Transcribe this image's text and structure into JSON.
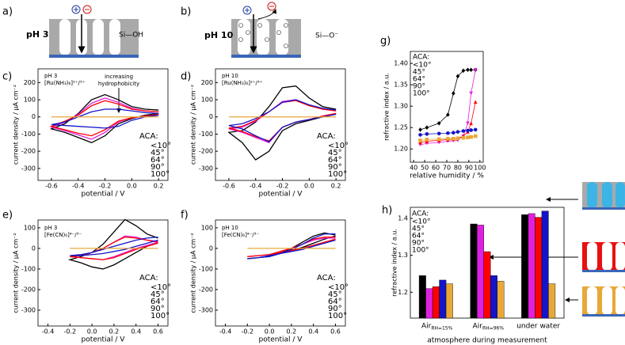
{
  "schematics": [
    {
      "panel": "a)",
      "label": "pH 3",
      "surface_group": "Si—OH"
    },
    {
      "panel": "b)",
      "label": "pH 10",
      "surface_group": "Si—O⁻"
    }
  ],
  "chart_data": [
    {
      "type": "line",
      "panel": "c)",
      "annotations": [
        "pH 3",
        "[Ru(NH₃)₆]²⁺/³⁺"
      ],
      "arrow_note": [
        "increasing",
        "hydrophobicity"
      ],
      "x_label": "potential / V",
      "y_label": "current density / µA cm⁻²",
      "legend_title": "ACA:",
      "xlim": [
        -0.7,
        0.27
      ],
      "ylim": [
        -370,
        280
      ],
      "xticks": [
        -0.6,
        -0.4,
        -0.2,
        {
          "value": 0,
          "label": "0.0"
        },
        0.2
      ],
      "yticks": [
        -300,
        -200,
        -100,
        0,
        100,
        200
      ],
      "x": [
        0.2,
        0.1,
        0,
        -0.1,
        -0.2,
        -0.3,
        -0.4,
        -0.5,
        -0.6,
        -0.5,
        -0.4,
        -0.3,
        -0.2,
        -0.1,
        0,
        0.1,
        0.2
      ],
      "series": [
        {
          "name": "<10°",
          "color": "#000000",
          "values": [
            20,
            10,
            -10,
            -40,
            -110,
            -150,
            -120,
            -90,
            -70,
            -40,
            20,
            100,
            130,
            100,
            60,
            45,
            40
          ]
        },
        {
          "name": "45°",
          "color": "#e020e0",
          "values": [
            15,
            5,
            -5,
            -30,
            -90,
            -130,
            -105,
            -80,
            -60,
            -30,
            15,
            80,
            110,
            85,
            50,
            35,
            30
          ]
        },
        {
          "name": "64°",
          "color": "#ff0000",
          "values": [
            15,
            5,
            -5,
            -25,
            -75,
            -110,
            -95,
            -75,
            -55,
            -25,
            10,
            65,
            95,
            75,
            45,
            35,
            30
          ]
        },
        {
          "name": "90°",
          "color": "#1414c8",
          "values": [
            10,
            0,
            -20,
            -55,
            -65,
            -60,
            -55,
            -50,
            -45,
            -30,
            0,
            30,
            45,
            45,
            35,
            25,
            20
          ]
        },
        {
          "name": "100°",
          "color": "#e8a838",
          "values": [
            0,
            0,
            0,
            0,
            0,
            0,
            0,
            0,
            0,
            0,
            0,
            0,
            0,
            0,
            0,
            0,
            0
          ]
        }
      ]
    },
    {
      "type": "line",
      "panel": "d)",
      "annotations": [
        "pH 10",
        "[Ru(NH₃)₆]²⁺/³⁺"
      ],
      "x_label": "potential / V",
      "y_label": "current density / µA cm⁻²",
      "legend_title": "ACA:",
      "xlim": [
        -0.7,
        0.27
      ],
      "ylim": [
        -370,
        280
      ],
      "xticks": [
        -0.6,
        -0.4,
        -0.2,
        {
          "value": 0,
          "label": "0.0"
        },
        0.2
      ],
      "yticks": [
        -300,
        -200,
        -100,
        0,
        100,
        200
      ],
      "x": [
        0.2,
        0.1,
        0,
        -0.1,
        -0.2,
        -0.3,
        -0.4,
        -0.5,
        -0.6,
        -0.5,
        -0.4,
        -0.3,
        -0.2,
        -0.1,
        0,
        0.1,
        0.2
      ],
      "series": [
        {
          "name": "<10°",
          "color": "#000000",
          "values": [
            20,
            0,
            -20,
            -40,
            -80,
            -200,
            -250,
            -150,
            -90,
            -80,
            -30,
            60,
            170,
            180,
            110,
            60,
            45
          ]
        },
        {
          "name": "45°",
          "color": "#e020e0",
          "values": [
            20,
            5,
            -15,
            -30,
            -60,
            -150,
            -120,
            -90,
            -70,
            -60,
            -25,
            30,
            90,
            100,
            70,
            45,
            35
          ]
        },
        {
          "name": "64°",
          "color": "#ff0000",
          "values": [
            20,
            5,
            -15,
            -30,
            -60,
            -140,
            -115,
            -85,
            -65,
            -55,
            -20,
            30,
            85,
            95,
            65,
            45,
            35
          ]
        },
        {
          "name": "90°",
          "color": "#1414c8",
          "values": [
            15,
            0,
            -15,
            -30,
            -60,
            -145,
            -110,
            -70,
            -50,
            -40,
            -10,
            30,
            85,
            100,
            70,
            50,
            40
          ]
        },
        {
          "name": "100°",
          "color": "#e8a838",
          "values": [
            0,
            0,
            0,
            0,
            0,
            0,
            0,
            0,
            0,
            0,
            0,
            0,
            0,
            0,
            0,
            0,
            0
          ]
        }
      ]
    },
    {
      "type": "line",
      "panel": "e)",
      "annotations": [
        "pH 3",
        "[Fe(CN)₆]⁴⁻/³⁻"
      ],
      "x_label": "potential / V",
      "y_label": "current density / µA cm⁻²",
      "legend_title": "ACA:",
      "xlim": [
        -0.49,
        0.69
      ],
      "ylim": [
        -377,
        138
      ],
      "xticks": [
        -0.4,
        -0.2,
        {
          "value": 0,
          "label": "0.0"
        },
        0.2,
        0.4,
        0.6
      ],
      "yticks": [
        -300,
        -200,
        -100,
        0,
        100
      ],
      "x": [
        0.6,
        0.5,
        0.4,
        0.3,
        0.2,
        0.1,
        0,
        -0.1,
        -0.2,
        -0.1,
        0,
        0.1,
        0.2,
        0.3,
        0.4,
        0.5,
        0.6
      ],
      "series": [
        {
          "name": "<10°",
          "color": "#000000",
          "values": [
            30,
            10,
            -20,
            -50,
            -80,
            -100,
            -90,
            -70,
            -55,
            -40,
            -20,
            20,
            80,
            140,
            110,
            70,
            50
          ]
        },
        {
          "name": "45°",
          "color": "#e020e0",
          "values": [
            30,
            15,
            0,
            -20,
            -40,
            -55,
            -50,
            -45,
            -40,
            -35,
            -20,
            0,
            30,
            60,
            55,
            40,
            35
          ]
        },
        {
          "name": "64°",
          "color": "#ff0000",
          "values": [
            25,
            10,
            -5,
            -25,
            -45,
            -55,
            -50,
            -45,
            -40,
            -35,
            -20,
            0,
            30,
            55,
            50,
            40,
            30
          ]
        },
        {
          "name": "90°",
          "color": "#1414c8",
          "values": [
            40,
            25,
            10,
            -5,
            -15,
            -25,
            -30,
            -35,
            -35,
            -30,
            -20,
            -5,
            10,
            25,
            40,
            50,
            55
          ]
        },
        {
          "name": "100°",
          "color": "#e8a838",
          "values": [
            0,
            0,
            0,
            0,
            0,
            0,
            0,
            0,
            0,
            0,
            0,
            0,
            0,
            0,
            0,
            0,
            0
          ]
        }
      ]
    },
    {
      "type": "line",
      "panel": "f)",
      "annotations": [
        "pH 10",
        "[Fe(CN)₆]⁴⁻/³⁻"
      ],
      "x_label": "potential / V",
      "y_label": "current density / µA cm⁻²",
      "legend_title": "ACA:",
      "xlim": [
        -0.49,
        0.69
      ],
      "ylim": [
        -377,
        138
      ],
      "xticks": [
        -0.4,
        -0.2,
        {
          "value": 0,
          "label": "0.0"
        },
        0.2,
        0.4,
        0.6
      ],
      "yticks": [
        -300,
        -200,
        -100,
        0,
        100
      ],
      "x": [
        0.6,
        0.5,
        0.4,
        0.3,
        0.2,
        0.1,
        0,
        -0.1,
        -0.2,
        -0.1,
        0,
        0.1,
        0.2,
        0.3,
        0.4,
        0.5,
        0.6
      ],
      "series": [
        {
          "name": "<10°",
          "color": "#000000",
          "values": [
            60,
            45,
            25,
            5,
            -10,
            -25,
            -35,
            -45,
            -50,
            -45,
            -35,
            -20,
            0,
            30,
            60,
            75,
            65
          ]
        },
        {
          "name": "45°",
          "color": "#e020e0",
          "values": [
            45,
            30,
            15,
            0,
            -10,
            -20,
            -30,
            -35,
            -40,
            -35,
            -30,
            -15,
            0,
            20,
            40,
            50,
            50
          ]
        },
        {
          "name": "64°",
          "color": "#ff0000",
          "values": [
            45,
            30,
            15,
            0,
            -10,
            -20,
            -30,
            -35,
            -40,
            -35,
            -30,
            -15,
            0,
            20,
            45,
            55,
            55
          ]
        },
        {
          "name": "90°",
          "color": "#1414c8",
          "values": [
            40,
            25,
            10,
            -5,
            -15,
            -25,
            -35,
            -45,
            -50,
            -45,
            -40,
            -25,
            -5,
            20,
            50,
            70,
            70
          ]
        },
        {
          "name": "100°",
          "color": "#e8a838",
          "values": [
            0,
            0,
            0,
            0,
            0,
            0,
            0,
            0,
            0,
            0,
            0,
            0,
            0,
            0,
            0,
            0,
            0
          ]
        }
      ]
    },
    {
      "type": "line",
      "panel": "g)",
      "x_label": "relative humidity / %",
      "y_label": "refractive index / a.u.",
      "legend_title": "ACA:",
      "xlim": [
        37,
        103
      ],
      "ylim": [
        1.169,
        1.428
      ],
      "xticks": [
        40,
        50,
        60,
        70,
        80,
        90,
        100
      ],
      "yticks": [
        {
          "value": 1.2,
          "label": "1.20"
        },
        1.25,
        {
          "value": 1.3,
          "label": "1.30"
        },
        1.35,
        {
          "value": 1.4,
          "label": "1.40"
        }
      ],
      "x": [
        46,
        52,
        63,
        71,
        76,
        80,
        85,
        89,
        92,
        96
      ],
      "series": [
        {
          "name": "<10°",
          "color": "#000000",
          "marker": "diamond",
          "values": [
            1.245,
            1.25,
            1.26,
            1.28,
            1.33,
            1.37,
            1.383,
            1.385,
            1.385,
            1.385
          ]
        },
        {
          "name": "45°",
          "color": "#e020e0",
          "marker": "triangle-down",
          "values": [
            1.21,
            1.213,
            1.215,
            1.218,
            1.219,
            1.22,
            1.23,
            1.26,
            1.33,
            1.385
          ]
        },
        {
          "name": "64°",
          "color": "#ff0000",
          "marker": "triangle-up",
          "values": [
            1.215,
            1.218,
            1.22,
            1.222,
            1.223,
            1.225,
            1.23,
            1.24,
            1.26,
            1.31
          ]
        },
        {
          "name": "90°",
          "color": "#1414c8",
          "marker": "circle",
          "values": [
            1.233,
            1.235,
            1.236,
            1.237,
            1.238,
            1.24,
            1.242,
            1.243,
            1.244,
            1.245
          ]
        },
        {
          "name": "100°",
          "color": "#e8a838",
          "marker": "square",
          "values": [
            1.22,
            1.222,
            1.223,
            1.224,
            1.224,
            1.225,
            1.226,
            1.227,
            1.228,
            1.23
          ]
        }
      ]
    },
    {
      "type": "bar",
      "panel": "h)",
      "x_label": "atmosphere during measurement",
      "y_label": "refractive index / a.u.",
      "legend_title": "ACA:",
      "ylim": [
        1.13,
        1.43
      ],
      "yticks": [
        1.2,
        1.3,
        1.4
      ],
      "categories": [
        "Air",
        "Air",
        "under water"
      ],
      "category_subscripts": [
        "RH=15%",
        "RH=96%",
        null
      ],
      "series": [
        {
          "name": "<10°",
          "color": "#000000",
          "values": [
            1.245,
            1.385,
            1.41
          ]
        },
        {
          "name": "45°",
          "color": "#e020e0",
          "values": [
            1.21,
            1.382,
            1.413
          ]
        },
        {
          "name": "64°",
          "color": "#ff0000",
          "values": [
            1.215,
            1.31,
            1.403
          ]
        },
        {
          "name": "90°",
          "color": "#1414c8",
          "values": [
            1.233,
            1.245,
            1.42
          ]
        },
        {
          "name": "100°",
          "color": "#e8a838",
          "values": [
            1.223,
            1.23,
            1.223
          ]
        }
      ]
    }
  ]
}
